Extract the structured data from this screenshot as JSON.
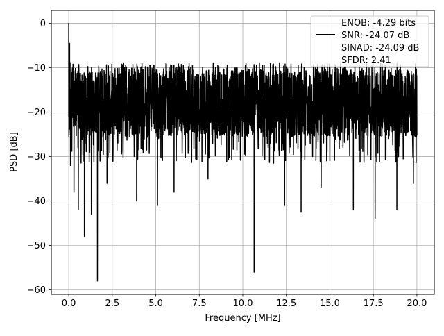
{
  "chart_data": {
    "type": "line",
    "title": "",
    "xlabel": "Frequency [MHz]",
    "ylabel": "PSD [dB]",
    "xlim": [
      -1.0,
      21.0
    ],
    "ylim": [
      -61.0,
      2.9
    ],
    "x_ticks": [
      0.0,
      2.5,
      5.0,
      7.5,
      10.0,
      12.5,
      15.0,
      17.5,
      20.0
    ],
    "x_tick_labels": [
      "0.0",
      "2.5",
      "5.0",
      "7.5",
      "10.0",
      "12.5",
      "15.0",
      "17.5",
      "20.0"
    ],
    "y_ticks": [
      0,
      -10,
      -20,
      -30,
      -40,
      -50,
      -60
    ],
    "y_tick_labels": [
      "0",
      "−10",
      "−20",
      "−30",
      "−40",
      "−50",
      "−60"
    ],
    "grid": true,
    "legend_position": "top-right",
    "legend": [
      {
        "label": "ENOB: -4.29 bits",
        "swatch": "none"
      },
      {
        "label": "SNR: -24.07 dB",
        "swatch": "line"
      },
      {
        "label": "SINAD: -24.09 dB",
        "swatch": "none"
      },
      {
        "label": "SFDR: 2.41",
        "swatch": "none"
      }
    ],
    "series": [
      {
        "color": "#000000",
        "x_range": [
          0.0,
          20.0
        ],
        "band_upper_db": -10.5,
        "band_lower_db": -25.5,
        "peaks": [
          {
            "x": 0.0,
            "y": 0.0
          },
          {
            "x": 0.05,
            "y": -4.5
          },
          {
            "x": 0.12,
            "y": -9.0
          }
        ],
        "dips": [
          {
            "x": 0.1,
            "y": -32.0
          },
          {
            "x": 0.3,
            "y": -38.0
          },
          {
            "x": 0.55,
            "y": -42.0
          },
          {
            "x": 0.9,
            "y": -48.0
          },
          {
            "x": 1.3,
            "y": -43.0
          },
          {
            "x": 1.65,
            "y": -58.0
          },
          {
            "x": 2.2,
            "y": -36.0
          },
          {
            "x": 3.9,
            "y": -40.0
          },
          {
            "x": 5.1,
            "y": -41.0
          },
          {
            "x": 6.05,
            "y": -38.0
          },
          {
            "x": 8.0,
            "y": -35.0
          },
          {
            "x": 10.65,
            "y": -56.0
          },
          {
            "x": 12.4,
            "y": -41.0
          },
          {
            "x": 13.35,
            "y": -42.5
          },
          {
            "x": 14.5,
            "y": -37.0
          },
          {
            "x": 16.35,
            "y": -42.0
          },
          {
            "x": 17.6,
            "y": -44.0
          },
          {
            "x": 18.85,
            "y": -42.0
          },
          {
            "x": 19.8,
            "y": -36.0
          }
        ]
      }
    ]
  }
}
